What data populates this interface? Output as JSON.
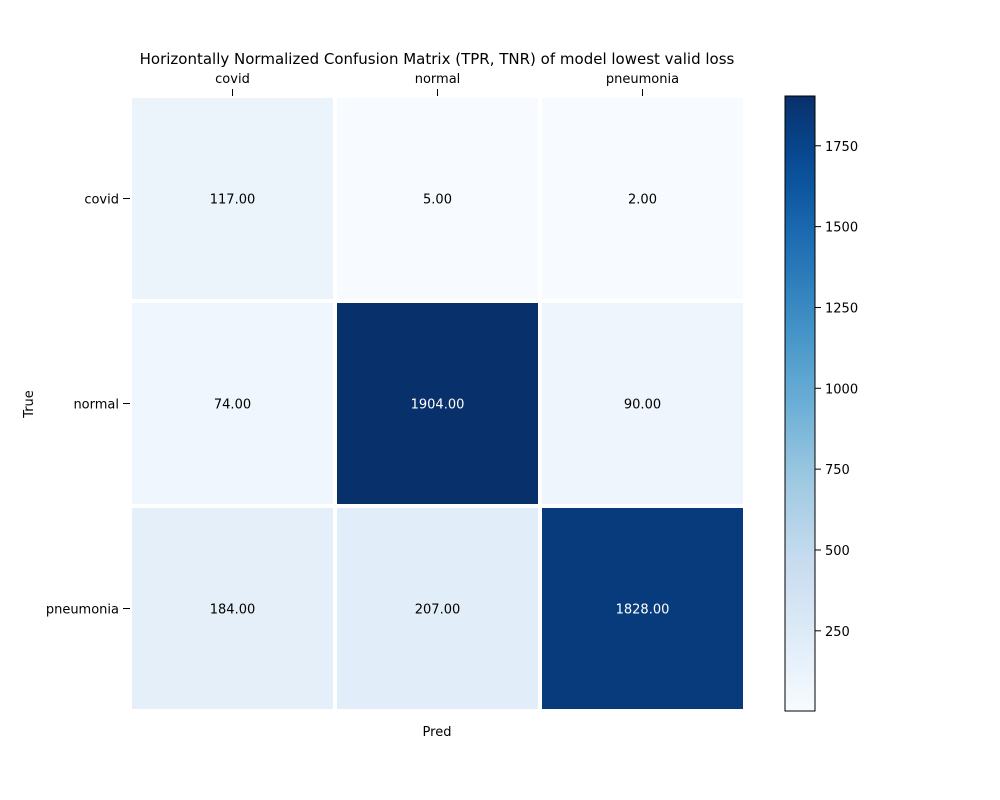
{
  "chart_data": {
    "type": "heatmap",
    "title": "Horizontally Normalized Confusion Matrix (TPR, TNR) of model lowest valid loss",
    "xlabel": "Pred",
    "ylabel": "True",
    "x_categories": [
      "covid",
      "normal",
      "pneumonia"
    ],
    "y_categories": [
      "covid",
      "normal",
      "pneumonia"
    ],
    "values": [
      [
        117,
        5,
        2
      ],
      [
        74,
        1904,
        90
      ],
      [
        184,
        207,
        1828
      ]
    ],
    "value_labels": [
      [
        "117.00",
        "5.00",
        "2.00"
      ],
      [
        "74.00",
        "1904.00",
        "90.00"
      ],
      [
        "184.00",
        "207.00",
        "1828.00"
      ]
    ],
    "colorbar": {
      "min": 2,
      "max": 1904,
      "ticks": [
        250,
        500,
        750,
        1000,
        1250,
        1500,
        1750
      ],
      "tick_labels": [
        "250",
        "500",
        "750",
        "1000",
        "1250",
        "1500",
        "1750"
      ]
    },
    "colormap": "Blues",
    "colors": {
      "low": "#f7fbff",
      "high": "#08306b",
      "text_dark": "#000000",
      "text_light": "#ffffff"
    }
  }
}
